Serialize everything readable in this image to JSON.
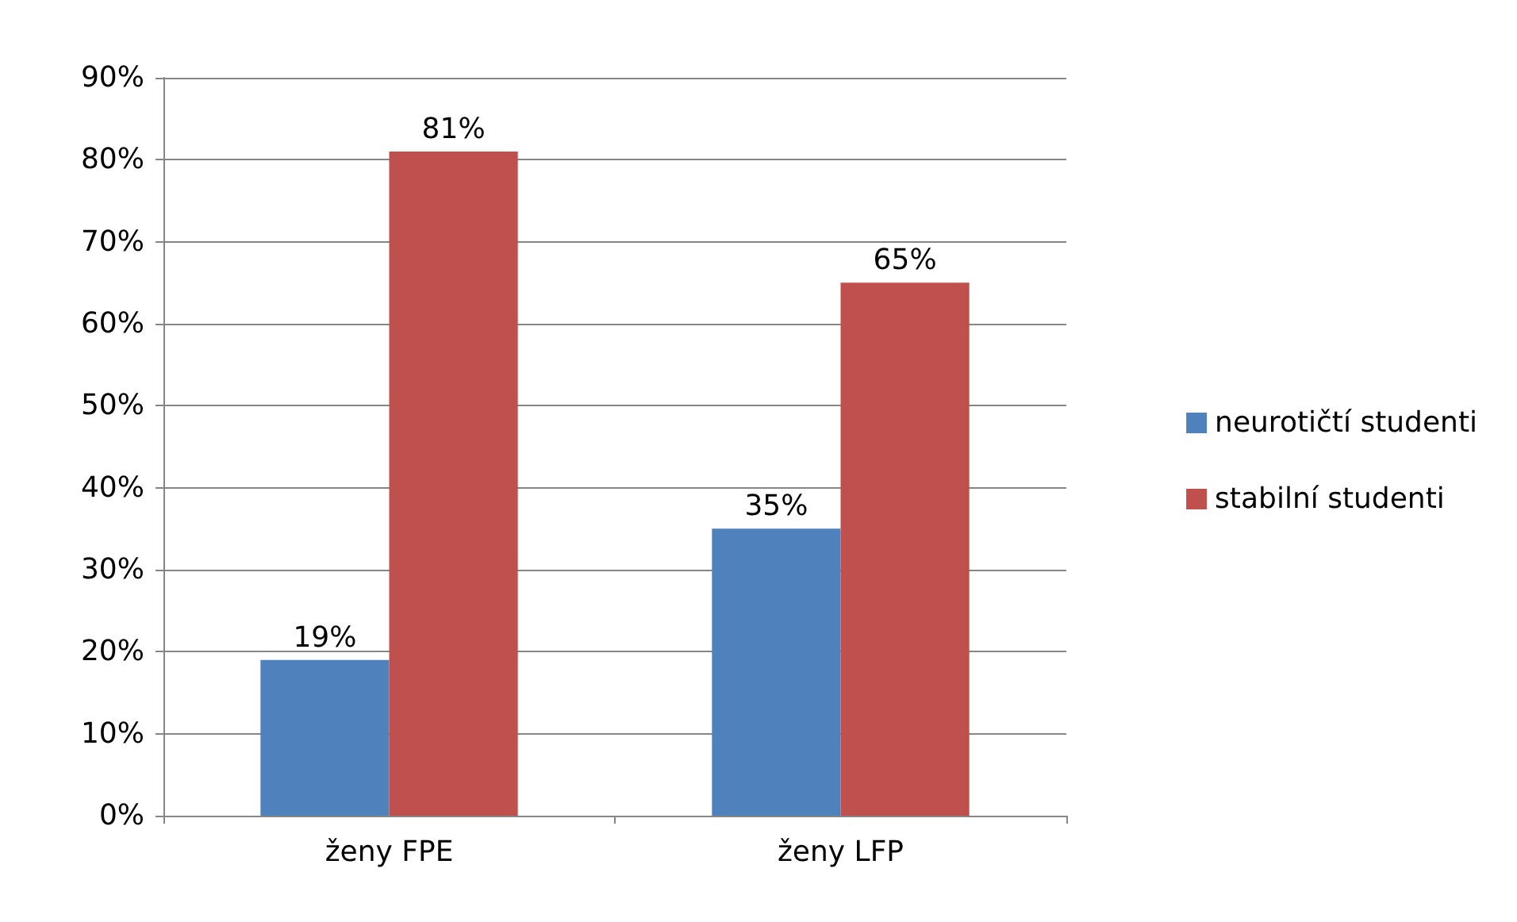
{
  "chart_data": {
    "type": "bar",
    "categories": [
      "ženy FPE",
      "ženy LFP"
    ],
    "series": [
      {
        "name": "neurotičtí studenti",
        "color": "#4f81bd",
        "values": [
          19,
          35
        ],
        "value_labels": [
          "19%",
          "35%"
        ]
      },
      {
        "name": "stabilní studenti",
        "color": "#c0504d",
        "values": [
          81,
          65
        ],
        "value_labels": [
          "81%",
          "65%"
        ]
      }
    ],
    "ylim": [
      0,
      90
    ],
    "yticks": [
      {
        "value": 0,
        "label": "0%"
      },
      {
        "value": 10,
        "label": "10%"
      },
      {
        "value": 20,
        "label": "20%"
      },
      {
        "value": 30,
        "label": "30%"
      },
      {
        "value": 40,
        "label": "40%"
      },
      {
        "value": 50,
        "label": "50%"
      },
      {
        "value": 60,
        "label": "60%"
      },
      {
        "value": 70,
        "label": "70%"
      },
      {
        "value": 80,
        "label": "80%"
      },
      {
        "value": 90,
        "label": "90%"
      }
    ],
    "grid": "y",
    "legend": "right"
  }
}
